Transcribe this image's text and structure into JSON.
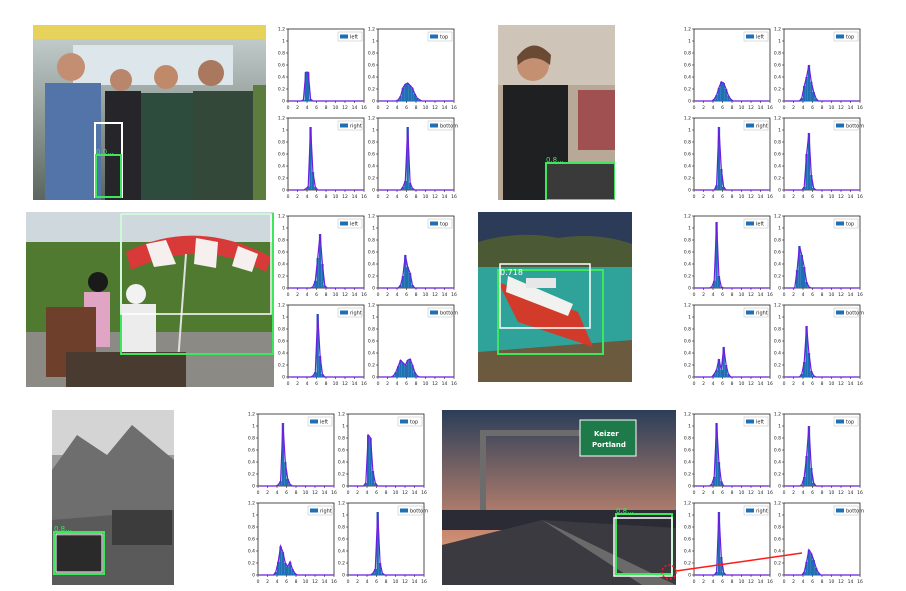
{
  "colors": {
    "bar": "#1f6fb4",
    "curve": "#6a1fe0",
    "gt_box": "#3ee65c",
    "pred_box": "#ffffff",
    "pointer": "#ff1a1a"
  },
  "photos": [
    {
      "id": "bus",
      "scene": "people standing in a bus",
      "score": "0.0..."
    },
    {
      "id": "man-laptop",
      "scene": "man looking at a laptop",
      "score": "0.8..."
    },
    {
      "id": "umbrella",
      "scene": "two people under a red and white umbrella on grass",
      "score": ""
    },
    {
      "id": "boat",
      "scene": "red and white boat on the sea",
      "score": "0.718"
    },
    {
      "id": "mountain",
      "scene": "jeep near a rocky mountain (black and white)",
      "score": "0.8..."
    },
    {
      "id": "highway",
      "scene": "highway at dusk with a green road sign",
      "score": "0.8...",
      "sign_text": [
        "Keizer",
        "Portland"
      ]
    }
  ],
  "chart_data": {
    "type": "bar",
    "xticks": [
      "0",
      "2",
      "4",
      "6",
      "8",
      "10",
      "12",
      "14",
      "16"
    ],
    "yticks": [
      "0",
      "0.2",
      "0.4",
      "0.6",
      "0.8",
      "1",
      "1.2"
    ],
    "xlim": [
      0,
      16
    ],
    "ylim": [
      0,
      1.2
    ],
    "panel_legends": [
      "left",
      "top",
      "right",
      "bottom"
    ],
    "groups": [
      {
        "image": "bus",
        "panels": [
          {
            "legend": "left",
            "values": [
              0,
              0,
              0,
              0,
              0,
              0,
              0.02,
              0.48,
              0.48,
              0.03,
              0,
              0,
              0,
              0,
              0,
              0,
              0,
              0,
              0,
              0,
              0,
              0,
              0,
              0,
              0,
              0,
              0,
              0,
              0,
              0,
              0,
              0
            ]
          },
          {
            "legend": "top",
            "values": [
              0,
              0,
              0,
              0,
              0,
              0,
              0,
              0,
              0.02,
              0.08,
              0.22,
              0.28,
              0.3,
              0.26,
              0.22,
              0.12,
              0.05,
              0.02,
              0,
              0,
              0,
              0,
              0,
              0,
              0,
              0,
              0,
              0,
              0,
              0,
              0,
              0
            ]
          },
          {
            "legend": "right",
            "values": [
              0,
              0,
              0,
              0,
              0,
              0,
              0,
              0.02,
              0.06,
              1.05,
              0.3,
              0.05,
              0,
              0,
              0,
              0,
              0,
              0,
              0,
              0,
              0,
              0,
              0,
              0,
              0,
              0,
              0,
              0,
              0,
              0,
              0,
              0
            ]
          },
          {
            "legend": "bottom",
            "values": [
              0,
              0,
              0,
              0,
              0,
              0,
              0,
              0,
              0,
              0,
              0.05,
              0.15,
              1.05,
              0.12,
              0.03,
              0,
              0,
              0,
              0,
              0,
              0,
              0,
              0,
              0,
              0,
              0,
              0,
              0,
              0,
              0,
              0,
              0
            ]
          }
        ]
      },
      {
        "image": "man-laptop",
        "panels": [
          {
            "legend": "left",
            "values": [
              0,
              0,
              0,
              0,
              0,
              0,
              0,
              0,
              0.03,
              0.1,
              0.22,
              0.32,
              0.3,
              0.2,
              0.09,
              0.03,
              0,
              0,
              0,
              0,
              0,
              0,
              0,
              0,
              0,
              0,
              0,
              0,
              0,
              0,
              0,
              0
            ]
          },
          {
            "legend": "top",
            "values": [
              0,
              0,
              0,
              0,
              0,
              0,
              0,
              0.05,
              0.25,
              0.4,
              0.6,
              0.32,
              0.15,
              0.04,
              0,
              0,
              0,
              0,
              0,
              0,
              0,
              0,
              0,
              0,
              0,
              0,
              0,
              0,
              0,
              0,
              0,
              0
            ]
          },
          {
            "legend": "right",
            "values": [
              0,
              0,
              0,
              0,
              0,
              0,
              0,
              0,
              0,
              0.08,
              1.05,
              0.35,
              0.05,
              0,
              0,
              0,
              0,
              0,
              0,
              0,
              0,
              0,
              0,
              0,
              0,
              0,
              0,
              0,
              0,
              0,
              0,
              0
            ]
          },
          {
            "legend": "bottom",
            "values": [
              0,
              0,
              0,
              0,
              0,
              0,
              0,
              0,
              0.05,
              0.6,
              0.95,
              0.25,
              0.03,
              0,
              0,
              0,
              0,
              0,
              0,
              0,
              0,
              0,
              0,
              0,
              0,
              0,
              0,
              0,
              0,
              0,
              0,
              0
            ]
          }
        ]
      },
      {
        "image": "umbrella",
        "panels": [
          {
            "legend": "left",
            "values": [
              0,
              0,
              0,
              0,
              0,
              0,
              0,
              0,
              0,
              0,
              0.02,
              0.12,
              0.5,
              0.9,
              0.4,
              0.04,
              0,
              0,
              0,
              0,
              0,
              0,
              0,
              0,
              0,
              0,
              0,
              0,
              0,
              0,
              0,
              0
            ]
          },
          {
            "legend": "top",
            "values": [
              0,
              0,
              0,
              0,
              0,
              0,
              0,
              0,
              0,
              0.05,
              0.2,
              0.55,
              0.35,
              0.25,
              0.05,
              0,
              0,
              0,
              0,
              0,
              0,
              0,
              0,
              0,
              0,
              0,
              0,
              0,
              0,
              0,
              0,
              0
            ]
          },
          {
            "legend": "right",
            "values": [
              0,
              0,
              0,
              0,
              0,
              0,
              0,
              0,
              0,
              0,
              0.02,
              0.08,
              1.05,
              0.35,
              0.05,
              0,
              0,
              0,
              0,
              0,
              0,
              0,
              0,
              0,
              0,
              0,
              0,
              0,
              0,
              0,
              0,
              0
            ]
          },
          {
            "legend": "bottom",
            "values": [
              0,
              0,
              0,
              0,
              0,
              0,
              0.02,
              0.08,
              0.18,
              0.28,
              0.24,
              0.2,
              0.28,
              0.3,
              0.2,
              0.08,
              0.02,
              0,
              0,
              0,
              0,
              0,
              0,
              0,
              0,
              0,
              0,
              0,
              0,
              0,
              0,
              0
            ]
          }
        ]
      },
      {
        "image": "boat",
        "panels": [
          {
            "legend": "left",
            "values": [
              0,
              0,
              0,
              0,
              0,
              0,
              0,
              0.02,
              0.12,
              1.1,
              0.2,
              0.02,
              0,
              0,
              0,
              0,
              0,
              0,
              0,
              0,
              0,
              0,
              0,
              0,
              0,
              0,
              0,
              0,
              0,
              0,
              0,
              0
            ]
          },
          {
            "legend": "top",
            "values": [
              0,
              0,
              0,
              0,
              0,
              0.3,
              0.7,
              0.55,
              0.35,
              0.1,
              0.02,
              0,
              0,
              0,
              0,
              0,
              0,
              0,
              0,
              0,
              0,
              0,
              0,
              0,
              0,
              0,
              0,
              0,
              0,
              0,
              0,
              0
            ]
          },
          {
            "legend": "right",
            "values": [
              0,
              0,
              0,
              0,
              0,
              0,
              0,
              0,
              0.05,
              0.12,
              0.3,
              0.12,
              0.5,
              0.2,
              0.05,
              0,
              0,
              0,
              0,
              0,
              0,
              0,
              0,
              0,
              0,
              0,
              0,
              0,
              0,
              0,
              0,
              0
            ]
          },
          {
            "legend": "bottom",
            "values": [
              0,
              0,
              0,
              0,
              0,
              0,
              0,
              0.05,
              0.25,
              0.85,
              0.4,
              0.1,
              0.02,
              0,
              0,
              0,
              0,
              0,
              0,
              0,
              0,
              0,
              0,
              0,
              0,
              0,
              0,
              0,
              0,
              0,
              0,
              0
            ]
          }
        ]
      },
      {
        "image": "mountain",
        "panels": [
          {
            "legend": "left",
            "values": [
              0,
              0,
              0,
              0,
              0,
              0,
              0,
              0,
              0.02,
              0.08,
              1.05,
              0.4,
              0.12,
              0.03,
              0,
              0,
              0,
              0,
              0,
              0,
              0,
              0,
              0,
              0,
              0,
              0,
              0,
              0,
              0,
              0,
              0,
              0
            ]
          },
          {
            "legend": "top",
            "values": [
              0,
              0,
              0,
              0,
              0,
              0,
              0,
              0.05,
              0.85,
              0.8,
              0.25,
              0.05,
              0,
              0,
              0,
              0,
              0,
              0,
              0,
              0,
              0,
              0,
              0,
              0,
              0,
              0,
              0,
              0,
              0,
              0,
              0,
              0
            ]
          },
          {
            "legend": "right",
            "values": [
              0,
              0,
              0,
              0,
              0,
              0,
              0,
              0.05,
              0.22,
              0.48,
              0.38,
              0.2,
              0.14,
              0.22,
              0.1,
              0.03,
              0,
              0,
              0,
              0,
              0,
              0,
              0,
              0,
              0,
              0,
              0,
              0,
              0,
              0,
              0,
              0
            ]
          },
          {
            "legend": "bottom",
            "values": [
              0,
              0,
              0,
              0,
              0,
              0,
              0,
              0,
              0,
              0,
              0.03,
              0.1,
              1.05,
              0.2,
              0.03,
              0,
              0,
              0,
              0,
              0,
              0,
              0,
              0,
              0,
              0,
              0,
              0,
              0,
              0,
              0,
              0,
              0
            ]
          }
        ]
      },
      {
        "image": "highway",
        "panels": [
          {
            "legend": "left",
            "values": [
              0,
              0,
              0,
              0,
              0,
              0,
              0,
              0.03,
              0.15,
              1.05,
              0.4,
              0.08,
              0,
              0,
              0,
              0,
              0,
              0,
              0,
              0,
              0,
              0,
              0,
              0,
              0,
              0,
              0,
              0,
              0,
              0,
              0,
              0
            ]
          },
          {
            "legend": "top",
            "values": [
              0,
              0,
              0,
              0,
              0,
              0,
              0,
              0.02,
              0.15,
              0.5,
              1.0,
              0.3,
              0.05,
              0,
              0,
              0,
              0,
              0,
              0,
              0,
              0,
              0,
              0,
              0,
              0,
              0,
              0,
              0,
              0,
              0,
              0,
              0
            ]
          },
          {
            "legend": "right",
            "values": [
              0,
              0,
              0,
              0,
              0,
              0,
              0,
              0,
              0,
              0.05,
              1.05,
              0.3,
              0.04,
              0,
              0,
              0,
              0,
              0,
              0,
              0,
              0,
              0,
              0,
              0,
              0,
              0,
              0,
              0,
              0,
              0,
              0,
              0
            ]
          },
          {
            "legend": "bottom",
            "values": [
              0,
              0,
              0,
              0,
              0,
              0,
              0,
              0,
              0.05,
              0.22,
              0.42,
              0.36,
              0.25,
              0.12,
              0.04,
              0,
              0,
              0,
              0,
              0,
              0,
              0,
              0,
              0,
              0,
              0,
              0,
              0,
              0,
              0,
              0,
              0
            ]
          }
        ]
      }
    ]
  }
}
